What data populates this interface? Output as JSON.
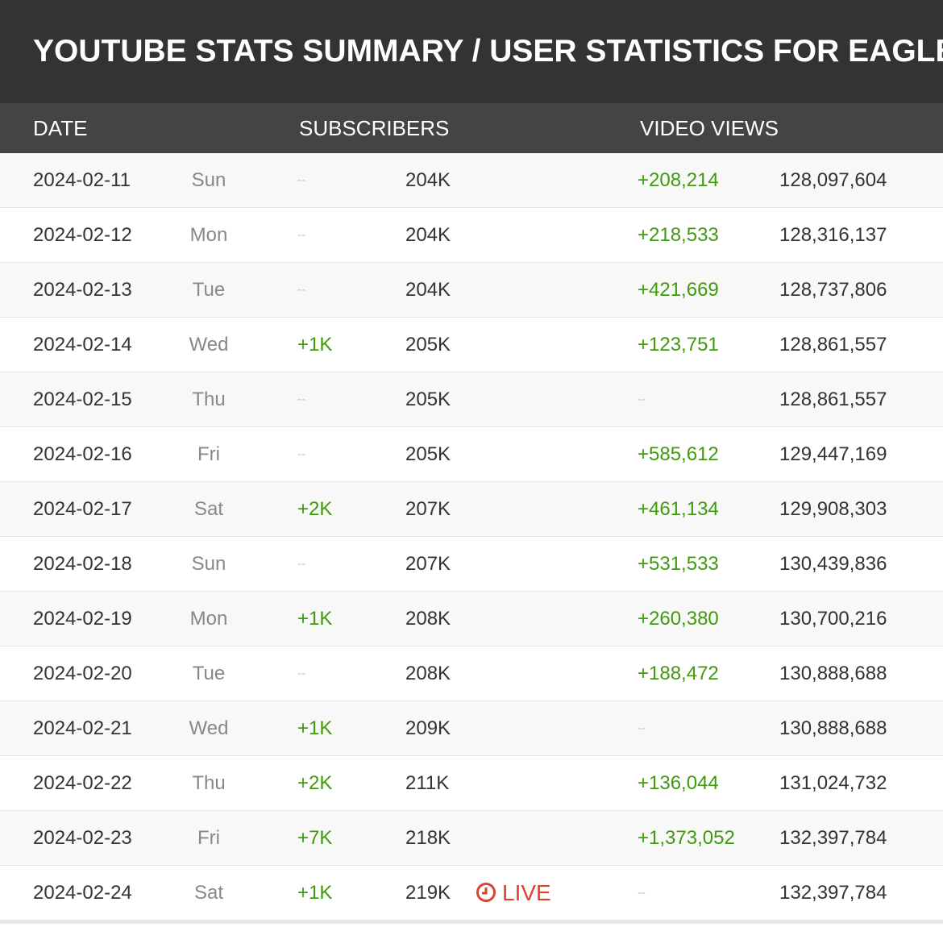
{
  "header": {
    "title": "YOUTUBE STATS SUMMARY / USER STATISTICS FOR EAGLE"
  },
  "table": {
    "columns": [
      "DATE",
      "SUBSCRIBERS",
      "VIDEO VIEWS"
    ],
    "rows": [
      {
        "date": "2024-02-11",
        "day": "Sun",
        "subscribers_change": "--",
        "subscribers": "204K",
        "views_change": "+208,214",
        "views": "128,097,604"
      },
      {
        "date": "2024-02-12",
        "day": "Mon",
        "subscribers_change": "--",
        "subscribers": "204K",
        "views_change": "+218,533",
        "views": "128,316,137"
      },
      {
        "date": "2024-02-13",
        "day": "Tue",
        "subscribers_change": "--",
        "subscribers": "204K",
        "views_change": "+421,669",
        "views": "128,737,806"
      },
      {
        "date": "2024-02-14",
        "day": "Wed",
        "subscribers_change": "+1K",
        "subscribers": "205K",
        "views_change": "+123,751",
        "views": "128,861,557"
      },
      {
        "date": "2024-02-15",
        "day": "Thu",
        "subscribers_change": "--",
        "subscribers": "205K",
        "views_change": "--",
        "views": "128,861,557"
      },
      {
        "date": "2024-02-16",
        "day": "Fri",
        "subscribers_change": "--",
        "subscribers": "205K",
        "views_change": "+585,612",
        "views": "129,447,169"
      },
      {
        "date": "2024-02-17",
        "day": "Sat",
        "subscribers_change": "+2K",
        "subscribers": "207K",
        "views_change": "+461,134",
        "views": "129,908,303"
      },
      {
        "date": "2024-02-18",
        "day": "Sun",
        "subscribers_change": "--",
        "subscribers": "207K",
        "views_change": "+531,533",
        "views": "130,439,836"
      },
      {
        "date": "2024-02-19",
        "day": "Mon",
        "subscribers_change": "+1K",
        "subscribers": "208K",
        "views_change": "+260,380",
        "views": "130,700,216"
      },
      {
        "date": "2024-02-20",
        "day": "Tue",
        "subscribers_change": "--",
        "subscribers": "208K",
        "views_change": "+188,472",
        "views": "130,888,688"
      },
      {
        "date": "2024-02-21",
        "day": "Wed",
        "subscribers_change": "+1K",
        "subscribers": "209K",
        "views_change": "--",
        "views": "130,888,688"
      },
      {
        "date": "2024-02-22",
        "day": "Thu",
        "subscribers_change": "+2K",
        "subscribers": "211K",
        "views_change": "+136,044",
        "views": "131,024,732"
      },
      {
        "date": "2024-02-23",
        "day": "Fri",
        "subscribers_change": "+7K",
        "subscribers": "218K",
        "views_change": "+1,373,052",
        "views": "132,397,784"
      },
      {
        "date": "2024-02-24",
        "day": "Sat",
        "subscribers_change": "+1K",
        "subscribers": "219K",
        "live": "LIVE",
        "views_change": "--",
        "views": "132,397,784"
      }
    ]
  }
}
